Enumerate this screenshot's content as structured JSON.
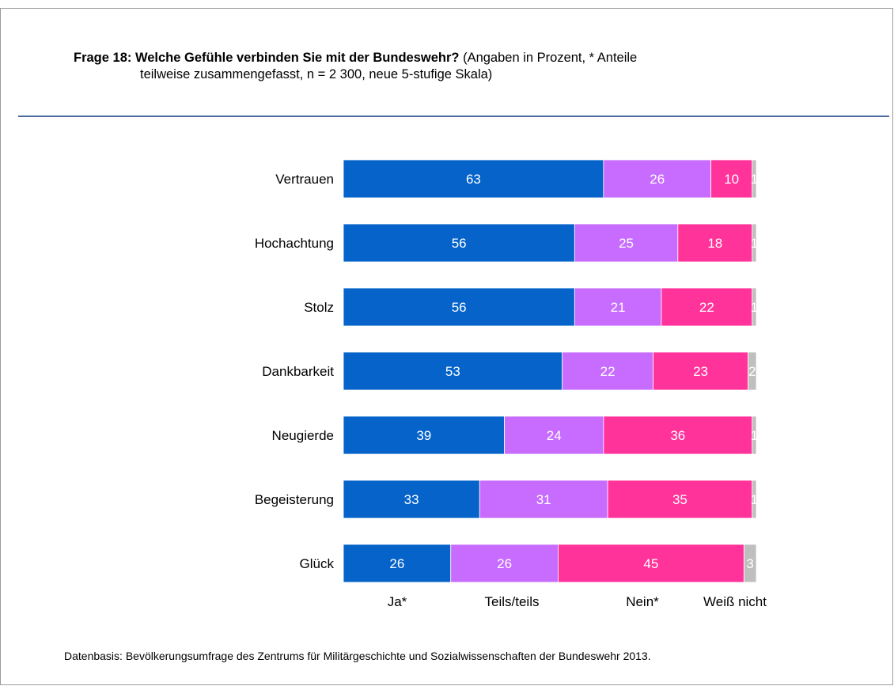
{
  "title": {
    "question": "Frage 18: Welche Gefühle verbinden Sie mit der Bundeswehr?",
    "note_line1": "(Angaben in Prozent, * Anteile",
    "note_line2": "teilweise zusammengefasst, n = 2 300, neue 5-stufige Skala)"
  },
  "footer": "Datenbasis: Bevölkerungsumfrage des Zentrums für Militärgeschichte und Sozialwissenschaften der Bundeswehr 2013.",
  "colors": {
    "ja": "#0563c9",
    "teils": "#c86cff",
    "nein": "#ff3399",
    "weiss_nicht": "#bfbfbf",
    "rule": "#4a6aa0"
  },
  "chart_data": {
    "type": "bar",
    "orientation": "horizontal",
    "stacked": true,
    "categories": [
      "Vertrauen",
      "Hochachtung",
      "Stolz",
      "Dankbarkeit",
      "Neugierde",
      "Begeisterung",
      "Glück"
    ],
    "series": [
      {
        "name": "Ja*",
        "color": "#0563c9",
        "values": [
          63,
          56,
          56,
          53,
          39,
          33,
          26
        ]
      },
      {
        "name": "Teils/teils",
        "color": "#c86cff",
        "values": [
          26,
          25,
          21,
          22,
          24,
          31,
          26
        ]
      },
      {
        "name": "Nein*",
        "color": "#ff3399",
        "values": [
          10,
          18,
          22,
          23,
          36,
          35,
          45
        ]
      },
      {
        "name": "Weiß nicht",
        "color": "#bfbfbf",
        "values": [
          1,
          1,
          1,
          2,
          1,
          1,
          3
        ]
      }
    ],
    "xlim": [
      0,
      100
    ],
    "legend_position": "bottom",
    "grid": false
  }
}
